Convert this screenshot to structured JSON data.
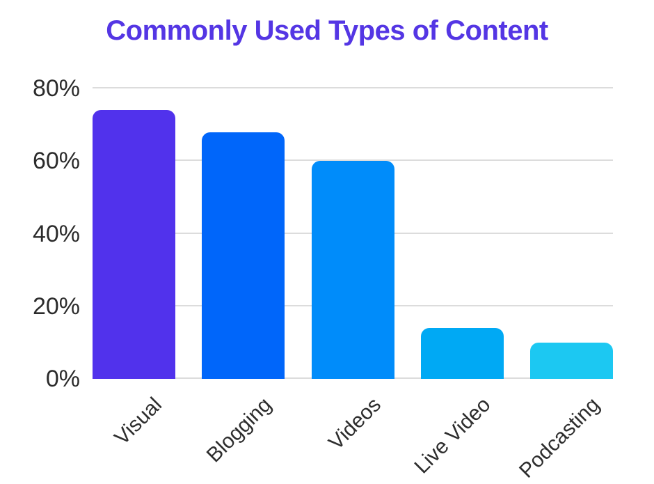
{
  "page": {
    "background": "#ffffff"
  },
  "title": {
    "text": "Commonly Used Types of Content",
    "color": "#5436e4"
  },
  "chart_data": {
    "type": "bar",
    "title": "Commonly Used Types of Content",
    "categories": [
      "Visual",
      "Blogging",
      "Videos",
      "Live Video",
      "Podcasting"
    ],
    "values": [
      74,
      68,
      60,
      14,
      10
    ],
    "unit": "%",
    "bar_colors": [
      "#5132ec",
      "#0066fa",
      "#008cfa",
      "#00a9f4",
      "#1cc8f2"
    ],
    "xlabel": "",
    "ylabel": "",
    "ylim": [
      0,
      80
    ],
    "ytick_values": [
      0,
      20,
      40,
      60,
      80
    ],
    "ytick_labels": [
      "0%",
      "20%",
      "40%",
      "60%",
      "80%"
    ],
    "grid": true,
    "legend": false,
    "gridline_color": "#dcdcdc",
    "ytick_text_color": "#2b2b2b",
    "xtick_text_color": "#2e2e2e"
  }
}
